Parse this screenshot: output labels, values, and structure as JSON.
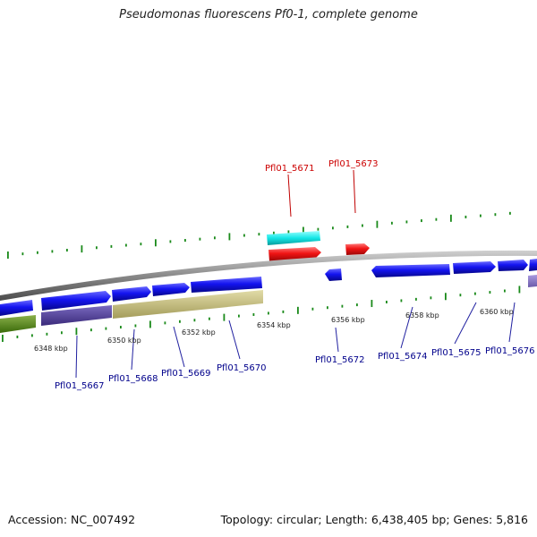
{
  "title": "Pseudomonas fluorescens Pf0-1, complete genome",
  "footer": {
    "accession": "Accession: NC_007492",
    "summary": "Topology: circular; Length: 6,438,405 bp; Genes: 5,816"
  },
  "colors": {
    "backbone": "#8a8a8a",
    "forward_gene": "#1a1aff",
    "highlight_gene": "#ff1a1a",
    "highlight_rna": "#19eded",
    "tick_mark": "#1a8a1a",
    "label_blue": "#00008b",
    "label_red": "#cc0000",
    "track_green": "#5a8a1a",
    "track_purple": "#5a4a9a",
    "track_khaki": "#c8bf84",
    "track_lavender": "#8a7ac8"
  },
  "scale_labels": [
    "6348 kbp",
    "6350 kbp",
    "6352 kbp",
    "6354 kbp",
    "6356 kbp",
    "6358 kbp",
    "6360 kbp"
  ],
  "genes_below": [
    "Pfl01_5667",
    "Pfl01_5668",
    "Pfl01_5669",
    "Pfl01_5670",
    "Pfl01_5672",
    "Pfl01_5674",
    "Pfl01_5675",
    "Pfl01_5676"
  ],
  "genes_above": [
    "Pfl01_5671",
    "Pfl01_5673"
  ]
}
